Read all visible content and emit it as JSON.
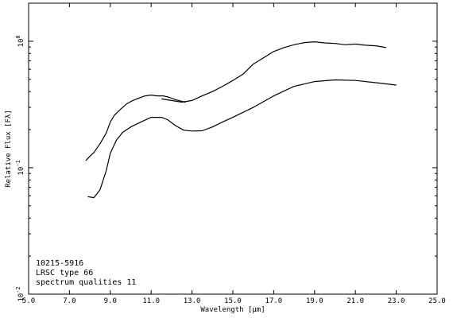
{
  "chart_data": {
    "type": "line",
    "title": "",
    "xlabel": "Wavelength [µm]",
    "ylabel": "Relative Flux [Fλ]",
    "xscale": "linear",
    "yscale": "log",
    "xlim": [
      5.0,
      25.0
    ],
    "ylim": [
      0.01,
      2.0
    ],
    "grid": false,
    "legend": "none",
    "x_ticks": [
      5.0,
      7.0,
      9.0,
      11.0,
      13.0,
      15.0,
      17.0,
      19.0,
      21.0,
      23.0,
      25.0
    ],
    "x_tick_labels": [
      "5.0",
      "7.0",
      "9.0",
      "11.0",
      "13.0",
      "15.0",
      "17.0",
      "19.0",
      "21.0",
      "23.0",
      "25.0"
    ],
    "y_tick_labels": [
      {
        "value": 1.0,
        "mantissa": "10",
        "exponent": "0"
      },
      {
        "value": 0.1,
        "mantissa": "10",
        "exponent": "-1"
      },
      {
        "value": 0.01,
        "mantissa": "10",
        "exponent": "-2"
      }
    ],
    "annotations": [
      "10215-5916",
      "LRSC type 66",
      "spectrum qualities 11"
    ],
    "series": [
      {
        "x": [
          7.8,
          8.0,
          8.2,
          8.5,
          8.8,
          9.0,
          9.2,
          9.5,
          9.8,
          10.1,
          10.4,
          10.7,
          11.0,
          11.3,
          11.6,
          11.9,
          12.2,
          12.5,
          12.7
        ],
        "y": [
          0.114,
          0.123,
          0.132,
          0.155,
          0.188,
          0.23,
          0.26,
          0.29,
          0.32,
          0.34,
          0.355,
          0.37,
          0.375,
          0.37,
          0.37,
          0.36,
          0.345,
          0.335,
          0.33
        ]
      },
      {
        "x": [
          11.5,
          12.0,
          12.5,
          13.0,
          13.5,
          14.0,
          14.5,
          15.0,
          15.5,
          16.0,
          16.5,
          17.0,
          17.5,
          18.0,
          18.5,
          19.0,
          19.5,
          20.0,
          20.5,
          21.0,
          21.5,
          22.0,
          22.5
        ],
        "y": [
          0.35,
          0.34,
          0.33,
          0.34,
          0.37,
          0.4,
          0.44,
          0.49,
          0.55,
          0.66,
          0.74,
          0.83,
          0.89,
          0.94,
          0.975,
          0.99,
          0.97,
          0.96,
          0.94,
          0.95,
          0.93,
          0.92,
          0.89
        ]
      },
      {
        "x": [
          7.9,
          8.2,
          8.5,
          8.8,
          9.0,
          9.3,
          9.6,
          10.0,
          10.5,
          11.0,
          11.5,
          11.8,
          12.2,
          12.6,
          13.0,
          13.5,
          14.0,
          14.5,
          15.0,
          16.0,
          17.0,
          18.0,
          19.0,
          20.0,
          21.0,
          22.0,
          23.0
        ],
        "y": [
          0.059,
          0.058,
          0.067,
          0.095,
          0.13,
          0.165,
          0.19,
          0.21,
          0.23,
          0.25,
          0.25,
          0.24,
          0.215,
          0.198,
          0.195,
          0.196,
          0.21,
          0.23,
          0.25,
          0.3,
          0.37,
          0.44,
          0.48,
          0.495,
          0.49,
          0.47,
          0.45
        ]
      }
    ]
  }
}
